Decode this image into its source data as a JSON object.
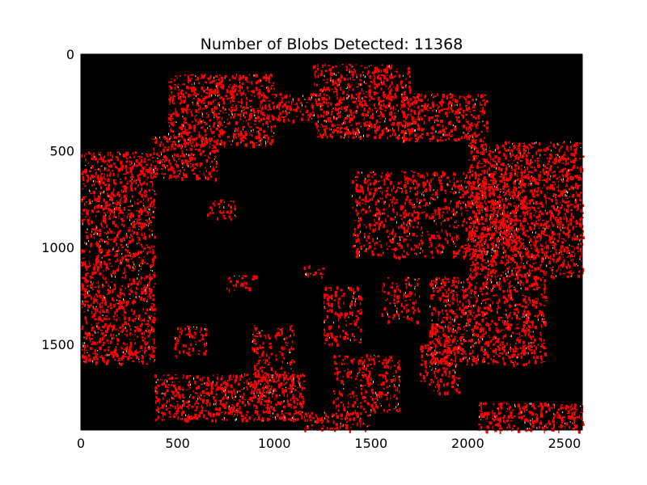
{
  "chart_data": {
    "type": "image",
    "title": "Number of Blobs Detected: 11368",
    "xlabel": "",
    "ylabel": "",
    "xlim": [
      0,
      2592
    ],
    "ylim": [
      1944,
      0
    ],
    "x_ticks": [
      0,
      500,
      1000,
      1500,
      2000,
      2500
    ],
    "y_ticks": [
      0,
      500,
      1000,
      1500
    ],
    "background_color": "#000000",
    "blob_color": "#ff0000",
    "speck_colors": [
      "#f2f2a0",
      "#c8e6a0",
      "#ffffff"
    ],
    "blob_clusters": [
      {
        "x0": 0,
        "x1": 380,
        "y0": 500,
        "y1": 1600,
        "density": 0.55
      },
      {
        "x0": 370,
        "x1": 700,
        "y0": 420,
        "y1": 640,
        "density": 0.5
      },
      {
        "x0": 450,
        "x1": 1000,
        "y0": 100,
        "y1": 470,
        "density": 0.55
      },
      {
        "x0": 1000,
        "x1": 1200,
        "y0": 200,
        "y1": 340,
        "density": 0.55
      },
      {
        "x0": 1200,
        "x1": 1700,
        "y0": 50,
        "y1": 430,
        "density": 0.6
      },
      {
        "x0": 1650,
        "x1": 2100,
        "y0": 200,
        "y1": 450,
        "density": 0.55
      },
      {
        "x0": 2000,
        "x1": 2592,
        "y0": 450,
        "y1": 1150,
        "density": 0.6
      },
      {
        "x0": 1400,
        "x1": 2300,
        "y0": 600,
        "y1": 1050,
        "density": 0.4
      },
      {
        "x0": 1800,
        "x1": 2400,
        "y0": 1150,
        "y1": 1600,
        "density": 0.55
      },
      {
        "x0": 1750,
        "x1": 1950,
        "y0": 1500,
        "y1": 1750,
        "density": 0.45
      },
      {
        "x0": 880,
        "x1": 1100,
        "y0": 1400,
        "y1": 1800,
        "density": 0.35
      },
      {
        "x0": 1300,
        "x1": 1650,
        "y0": 1550,
        "y1": 1850,
        "density": 0.4
      },
      {
        "x0": 380,
        "x1": 1150,
        "y0": 1650,
        "y1": 1890,
        "density": 0.6
      },
      {
        "x0": 1150,
        "x1": 1500,
        "y0": 1850,
        "y1": 1944,
        "density": 0.5
      },
      {
        "x0": 2050,
        "x1": 2592,
        "y0": 1800,
        "y1": 1944,
        "density": 0.6
      },
      {
        "x0": 650,
        "x1": 800,
        "y0": 750,
        "y1": 850,
        "density": 0.4
      },
      {
        "x0": 750,
        "x1": 900,
        "y0": 1140,
        "y1": 1220,
        "density": 0.4
      },
      {
        "x0": 1150,
        "x1": 1250,
        "y0": 1080,
        "y1": 1150,
        "density": 0.4
      },
      {
        "x0": 1250,
        "x1": 1450,
        "y0": 1200,
        "y1": 1500,
        "density": 0.4
      },
      {
        "x0": 480,
        "x1": 650,
        "y0": 1400,
        "y1": 1560,
        "density": 0.4
      },
      {
        "x0": 1550,
        "x1": 1750,
        "y0": 1150,
        "y1": 1380,
        "density": 0.35
      }
    ]
  }
}
